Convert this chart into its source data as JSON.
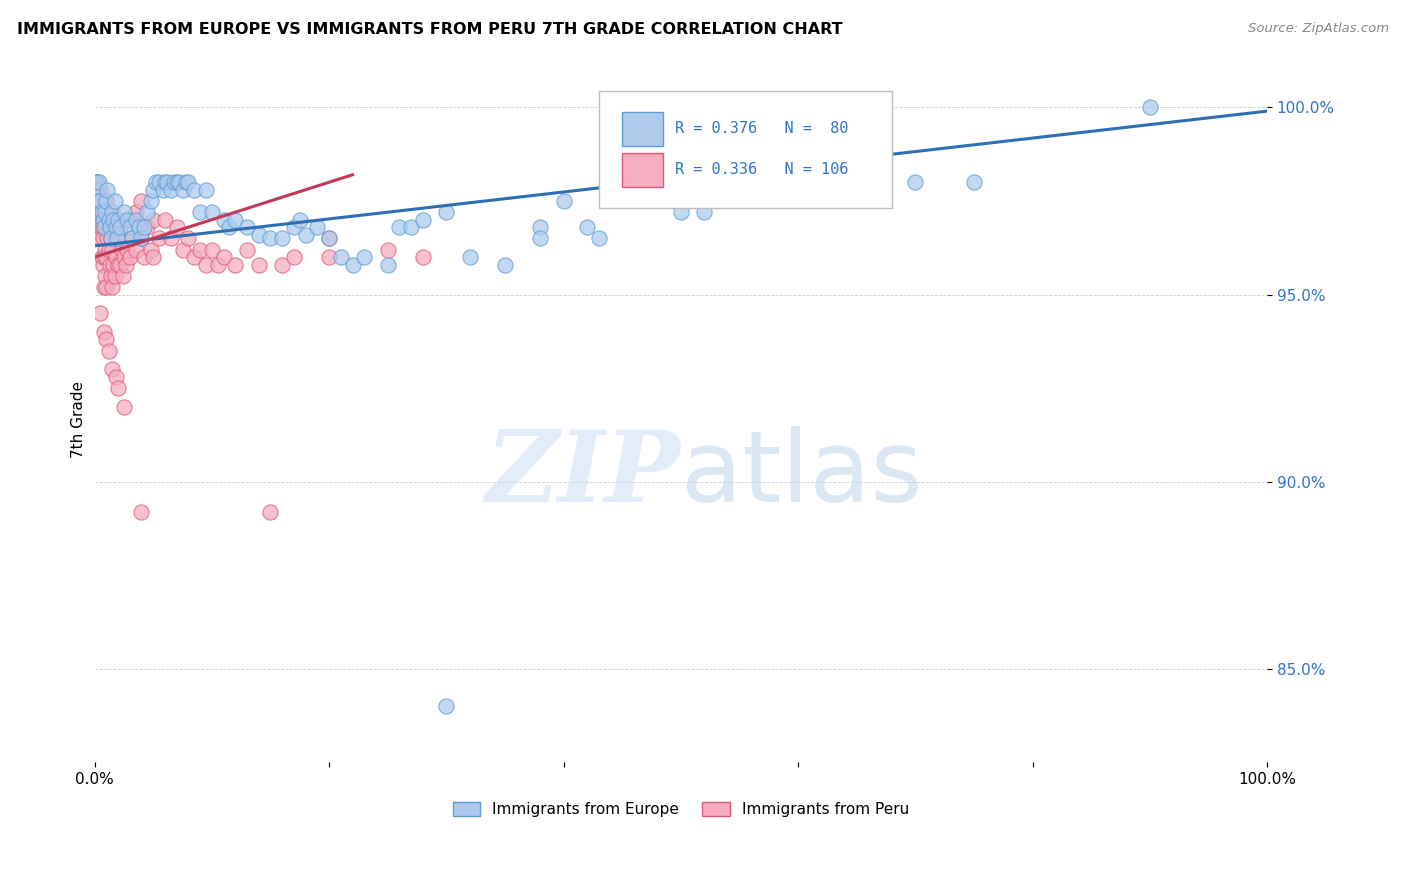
{
  "title": "IMMIGRANTS FROM EUROPE VS IMMIGRANTS FROM PERU 7TH GRADE CORRELATION CHART",
  "source": "Source: ZipAtlas.com",
  "ylabel": "7th Grade",
  "R_blue": 0.376,
  "N_blue": 80,
  "R_pink": 0.336,
  "N_pink": 106,
  "blue_color": "#aecbee",
  "pink_color": "#f5adbf",
  "blue_edge_color": "#5b9bd5",
  "pink_edge_color": "#e05a7a",
  "blue_line_color": "#2e6eb5",
  "pink_line_color": "#c0395a",
  "legend_label_blue": "Immigrants from Europe",
  "legend_label_pink": "Immigrants from Peru",
  "blue_scatter": [
    [
      0.001,
      0.98
    ],
    [
      0.002,
      0.978
    ],
    [
      0.003,
      0.975
    ],
    [
      0.004,
      0.98
    ],
    [
      0.005,
      0.975
    ],
    [
      0.006,
      0.972
    ],
    [
      0.007,
      0.97
    ],
    [
      0.008,
      0.968
    ],
    [
      0.009,
      0.972
    ],
    [
      0.01,
      0.975
    ],
    [
      0.011,
      0.978
    ],
    [
      0.012,
      0.97
    ],
    [
      0.013,
      0.968
    ],
    [
      0.014,
      0.965
    ],
    [
      0.015,
      0.972
    ],
    [
      0.016,
      0.97
    ],
    [
      0.017,
      0.975
    ],
    [
      0.018,
      0.968
    ],
    [
      0.019,
      0.965
    ],
    [
      0.02,
      0.97
    ],
    [
      0.022,
      0.968
    ],
    [
      0.025,
      0.972
    ],
    [
      0.028,
      0.97
    ],
    [
      0.03,
      0.968
    ],
    [
      0.032,
      0.965
    ],
    [
      0.035,
      0.97
    ],
    [
      0.038,
      0.968
    ],
    [
      0.04,
      0.965
    ],
    [
      0.042,
      0.968
    ],
    [
      0.045,
      0.972
    ],
    [
      0.048,
      0.975
    ],
    [
      0.05,
      0.978
    ],
    [
      0.052,
      0.98
    ],
    [
      0.055,
      0.98
    ],
    [
      0.058,
      0.978
    ],
    [
      0.06,
      0.98
    ],
    [
      0.062,
      0.98
    ],
    [
      0.065,
      0.978
    ],
    [
      0.068,
      0.98
    ],
    [
      0.07,
      0.98
    ],
    [
      0.072,
      0.98
    ],
    [
      0.075,
      0.978
    ],
    [
      0.078,
      0.98
    ],
    [
      0.08,
      0.98
    ],
    [
      0.085,
      0.978
    ],
    [
      0.09,
      0.972
    ],
    [
      0.095,
      0.978
    ],
    [
      0.1,
      0.972
    ],
    [
      0.11,
      0.97
    ],
    [
      0.115,
      0.968
    ],
    [
      0.12,
      0.97
    ],
    [
      0.13,
      0.968
    ],
    [
      0.14,
      0.966
    ],
    [
      0.15,
      0.965
    ],
    [
      0.16,
      0.965
    ],
    [
      0.17,
      0.968
    ],
    [
      0.175,
      0.97
    ],
    [
      0.18,
      0.966
    ],
    [
      0.19,
      0.968
    ],
    [
      0.2,
      0.965
    ],
    [
      0.21,
      0.96
    ],
    [
      0.22,
      0.958
    ],
    [
      0.23,
      0.96
    ],
    [
      0.25,
      0.958
    ],
    [
      0.26,
      0.968
    ],
    [
      0.27,
      0.968
    ],
    [
      0.28,
      0.97
    ],
    [
      0.3,
      0.972
    ],
    [
      0.32,
      0.96
    ],
    [
      0.35,
      0.958
    ],
    [
      0.38,
      0.968
    ],
    [
      0.38,
      0.965
    ],
    [
      0.4,
      0.975
    ],
    [
      0.42,
      0.968
    ],
    [
      0.43,
      0.965
    ],
    [
      0.5,
      0.972
    ],
    [
      0.52,
      0.972
    ],
    [
      0.3,
      0.84
    ],
    [
      0.7,
      0.98
    ],
    [
      0.75,
      0.98
    ],
    [
      0.9,
      1.0
    ]
  ],
  "pink_scatter": [
    [
      0.001,
      0.98
    ],
    [
      0.001,
      0.978
    ],
    [
      0.002,
      0.98
    ],
    [
      0.002,
      0.976
    ],
    [
      0.002,
      0.972
    ],
    [
      0.003,
      0.978
    ],
    [
      0.003,
      0.975
    ],
    [
      0.003,
      0.97
    ],
    [
      0.004,
      0.975
    ],
    [
      0.004,
      0.968
    ],
    [
      0.005,
      0.978
    ],
    [
      0.005,
      0.972
    ],
    [
      0.005,
      0.965
    ],
    [
      0.006,
      0.975
    ],
    [
      0.006,
      0.968
    ],
    [
      0.006,
      0.96
    ],
    [
      0.007,
      0.972
    ],
    [
      0.007,
      0.965
    ],
    [
      0.007,
      0.958
    ],
    [
      0.008,
      0.975
    ],
    [
      0.008,
      0.968
    ],
    [
      0.008,
      0.96
    ],
    [
      0.008,
      0.952
    ],
    [
      0.009,
      0.97
    ],
    [
      0.009,
      0.962
    ],
    [
      0.009,
      0.955
    ],
    [
      0.01,
      0.975
    ],
    [
      0.01,
      0.968
    ],
    [
      0.01,
      0.96
    ],
    [
      0.01,
      0.952
    ],
    [
      0.011,
      0.972
    ],
    [
      0.011,
      0.965
    ],
    [
      0.012,
      0.97
    ],
    [
      0.012,
      0.962
    ],
    [
      0.013,
      0.968
    ],
    [
      0.013,
      0.958
    ],
    [
      0.014,
      0.965
    ],
    [
      0.014,
      0.955
    ],
    [
      0.015,
      0.972
    ],
    [
      0.015,
      0.962
    ],
    [
      0.015,
      0.952
    ],
    [
      0.016,
      0.968
    ],
    [
      0.016,
      0.958
    ],
    [
      0.017,
      0.965
    ],
    [
      0.017,
      0.955
    ],
    [
      0.018,
      0.97
    ],
    [
      0.018,
      0.96
    ],
    [
      0.019,
      0.965
    ],
    [
      0.02,
      0.97
    ],
    [
      0.02,
      0.958
    ],
    [
      0.021,
      0.965
    ],
    [
      0.022,
      0.968
    ],
    [
      0.022,
      0.958
    ],
    [
      0.023,
      0.962
    ],
    [
      0.024,
      0.955
    ],
    [
      0.025,
      0.97
    ],
    [
      0.025,
      0.96
    ],
    [
      0.026,
      0.965
    ],
    [
      0.027,
      0.958
    ],
    [
      0.028,
      0.962
    ],
    [
      0.03,
      0.97
    ],
    [
      0.03,
      0.96
    ],
    [
      0.032,
      0.965
    ],
    [
      0.035,
      0.972
    ],
    [
      0.035,
      0.962
    ],
    [
      0.038,
      0.968
    ],
    [
      0.04,
      0.975
    ],
    [
      0.04,
      0.965
    ],
    [
      0.04,
      0.892
    ],
    [
      0.042,
      0.96
    ],
    [
      0.045,
      0.968
    ],
    [
      0.048,
      0.962
    ],
    [
      0.05,
      0.97
    ],
    [
      0.05,
      0.96
    ],
    [
      0.055,
      0.965
    ],
    [
      0.06,
      0.97
    ],
    [
      0.065,
      0.965
    ],
    [
      0.07,
      0.968
    ],
    [
      0.075,
      0.962
    ],
    [
      0.08,
      0.965
    ],
    [
      0.085,
      0.96
    ],
    [
      0.09,
      0.962
    ],
    [
      0.095,
      0.958
    ],
    [
      0.1,
      0.962
    ],
    [
      0.105,
      0.958
    ],
    [
      0.11,
      0.96
    ],
    [
      0.12,
      0.958
    ],
    [
      0.13,
      0.962
    ],
    [
      0.14,
      0.958
    ],
    [
      0.15,
      0.892
    ],
    [
      0.16,
      0.958
    ],
    [
      0.17,
      0.96
    ],
    [
      0.2,
      0.965
    ],
    [
      0.2,
      0.96
    ],
    [
      0.25,
      0.962
    ],
    [
      0.28,
      0.96
    ],
    [
      0.005,
      0.945
    ],
    [
      0.008,
      0.94
    ],
    [
      0.01,
      0.938
    ],
    [
      0.012,
      0.935
    ],
    [
      0.015,
      0.93
    ],
    [
      0.018,
      0.928
    ],
    [
      0.02,
      0.925
    ],
    [
      0.025,
      0.92
    ]
  ],
  "blue_trend_x": [
    0.0,
    1.0
  ],
  "blue_trend_y": [
    0.963,
    0.999
  ],
  "pink_trend_x": [
    0.0,
    0.22
  ],
  "pink_trend_y": [
    0.96,
    0.982
  ],
  "xlim": [
    0.0,
    1.0
  ],
  "ylim": [
    0.825,
    1.008
  ],
  "yticks": [
    0.85,
    0.9,
    0.95,
    1.0
  ],
  "ytick_labels": [
    "85.0%",
    "90.0%",
    "95.0%",
    "100.0%"
  ],
  "xtick_positions": [
    0.0,
    0.2,
    0.4,
    0.6,
    0.8,
    1.0
  ],
  "xtick_labels": [
    "0.0%",
    "",
    "",
    "",
    "",
    "100.0%"
  ]
}
